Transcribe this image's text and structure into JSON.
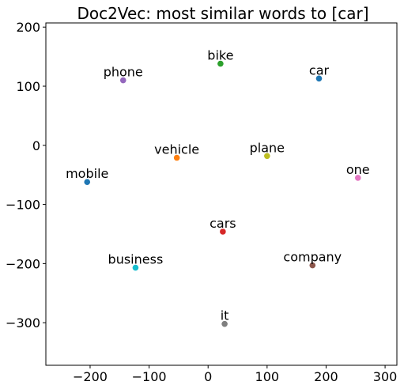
{
  "chart_data": {
    "type": "scatter",
    "title": "Doc2Vec: most similar words to [car]",
    "xlabel": "",
    "ylabel": "",
    "xlim": [
      -275,
      320
    ],
    "ylim": [
      -372,
      207
    ],
    "xticks": [
      -200,
      -100,
      0,
      100,
      200,
      300
    ],
    "yticks": [
      200,
      100,
      0,
      -100,
      -200,
      -300
    ],
    "xtick_labels": [
      "−200",
      "−100",
      "0",
      "100",
      "200",
      "300"
    ],
    "ytick_labels": [
      "200",
      "100",
      "0",
      "−100",
      "−200",
      "−300"
    ],
    "grid": false,
    "legend": "none",
    "points": [
      {
        "label": "car",
        "x": 188,
        "y": 113,
        "color": "#1f77b4"
      },
      {
        "label": "vehicle",
        "x": -53,
        "y": -21,
        "color": "#ff7f0e"
      },
      {
        "label": "bike",
        "x": 21,
        "y": 138,
        "color": "#2ca02c"
      },
      {
        "label": "cars",
        "x": 25,
        "y": -146,
        "color": "#d62728"
      },
      {
        "label": "phone",
        "x": -144,
        "y": 110,
        "color": "#9467bd"
      },
      {
        "label": "company",
        "x": 177,
        "y": -203,
        "color": "#8c564b"
      },
      {
        "label": "one",
        "x": 254,
        "y": -55,
        "color": "#e377c2"
      },
      {
        "label": "it",
        "x": 28,
        "y": -302,
        "color": "#7f7f7f"
      },
      {
        "label": "plane",
        "x": 100,
        "y": -18,
        "color": "#bcbd22"
      },
      {
        "label": "business",
        "x": -123,
        "y": -207,
        "color": "#17becf"
      },
      {
        "label": "mobile",
        "x": -205,
        "y": -62,
        "color": "#1f77b4"
      }
    ]
  }
}
